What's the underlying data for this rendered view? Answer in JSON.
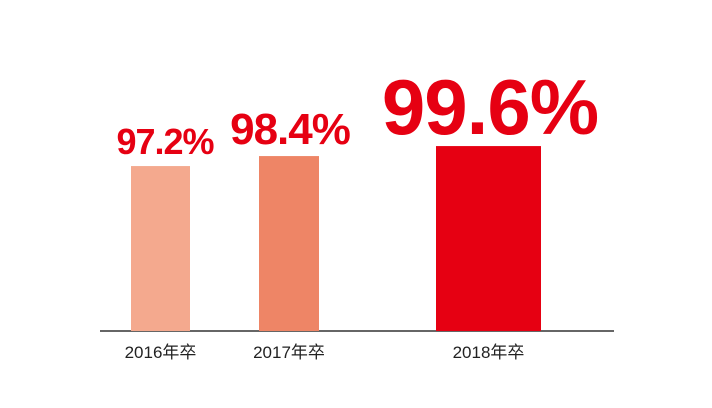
{
  "chart_data": {
    "type": "bar",
    "categories": [
      "2016年卒",
      "2017年卒",
      "2018年卒"
    ],
    "values": [
      97.2,
      98.4,
      99.6
    ],
    "value_labels": [
      "97.2%",
      "98.4%",
      "99.6%"
    ],
    "colors": [
      "#f4a98e",
      "#ee8566",
      "#e60012"
    ],
    "ylim": [
      77.4,
      100
    ]
  }
}
